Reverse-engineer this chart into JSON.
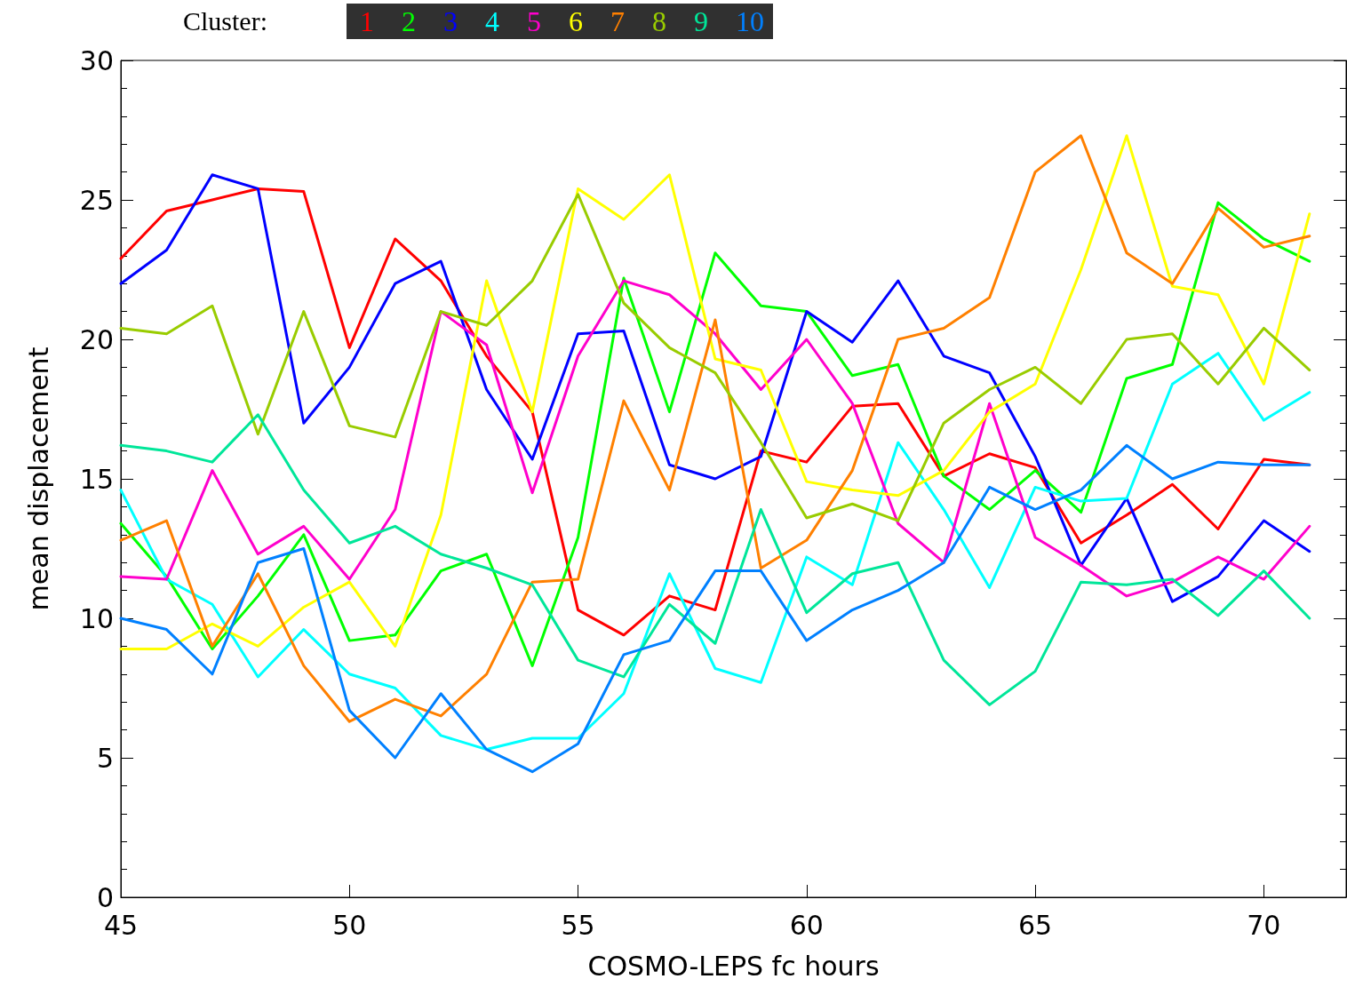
{
  "chart_data": {
    "type": "line",
    "xlabel": "COSMO-LEPS fc hours",
    "ylabel": "mean displacement",
    "legend_title": "Cluster:",
    "legend": "top left",
    "grid": false,
    "marker": "none",
    "line_style": "solid",
    "x": [
      45,
      46,
      47,
      48,
      49,
      50,
      51,
      52,
      53,
      54,
      55,
      56,
      57,
      58,
      59,
      60,
      61,
      62,
      63,
      64,
      65,
      66,
      67,
      68,
      69,
      70,
      71
    ],
    "xlim": [
      45,
      71.8
    ],
    "xticks": [
      45,
      50,
      55,
      60,
      65,
      70
    ],
    "ylim": [
      0,
      30
    ],
    "yticks": [
      0,
      5,
      10,
      15,
      20,
      25,
      30
    ],
    "series": [
      {
        "name": "1",
        "color": "#ff0000",
        "values": [
          22.9,
          24.6,
          25.0,
          25.4,
          25.3,
          19.7,
          23.6,
          22.1,
          19.4,
          17.4,
          10.3,
          9.4,
          10.8,
          10.3,
          16.0,
          15.6,
          17.6,
          17.7,
          15.1,
          15.9,
          15.4,
          12.7,
          13.7,
          14.8,
          13.2,
          15.7,
          15.5
        ]
      },
      {
        "name": "2",
        "color": "#00ff00",
        "values": [
          13.4,
          11.5,
          8.9,
          10.8,
          13.0,
          9.2,
          9.4,
          11.7,
          12.3,
          8.3,
          12.9,
          22.2,
          17.4,
          23.1,
          21.2,
          21.0,
          18.7,
          19.1,
          15.1,
          13.9,
          15.3,
          13.8,
          18.6,
          19.1,
          24.9,
          23.6,
          22.8
        ]
      },
      {
        "name": "3",
        "color": "#0000ff",
        "values": [
          22.0,
          23.2,
          25.9,
          25.4,
          17.0,
          19.0,
          22.0,
          22.8,
          18.2,
          15.7,
          20.2,
          20.3,
          15.5,
          15.0,
          15.8,
          21.0,
          19.9,
          22.1,
          19.4,
          18.8,
          15.8,
          11.9,
          14.3,
          10.6,
          11.5,
          13.5,
          12.4
        ]
      },
      {
        "name": "4",
        "color": "#00ffff",
        "values": [
          14.6,
          11.4,
          10.5,
          7.9,
          9.6,
          8.0,
          7.5,
          5.8,
          5.3,
          5.7,
          5.7,
          7.3,
          11.6,
          8.2,
          7.7,
          12.2,
          11.2,
          16.3,
          13.9,
          11.1,
          14.7,
          14.2,
          14.3,
          18.4,
          19.5,
          17.1,
          18.1
        ]
      },
      {
        "name": "5",
        "color": "#ff00cc",
        "values": [
          11.5,
          11.4,
          15.3,
          12.3,
          13.3,
          11.4,
          13.9,
          21.0,
          19.8,
          14.5,
          19.4,
          22.1,
          21.6,
          20.2,
          18.2,
          20.0,
          17.7,
          13.4,
          12.0,
          17.7,
          12.9,
          11.9,
          10.8,
          11.3,
          12.2,
          11.4,
          13.3
        ]
      },
      {
        "name": "6",
        "color": "#ffff00",
        "values": [
          8.9,
          8.9,
          9.8,
          9.0,
          10.4,
          11.3,
          9.0,
          13.7,
          22.1,
          17.4,
          25.4,
          24.3,
          25.9,
          19.3,
          18.9,
          14.9,
          14.6,
          14.4,
          15.3,
          17.4,
          18.4,
          22.5,
          27.3,
          21.9,
          21.6,
          18.4,
          24.5
        ]
      },
      {
        "name": "7",
        "color": "#ff8000",
        "values": [
          12.8,
          13.5,
          9.0,
          11.6,
          8.3,
          6.3,
          7.1,
          6.5,
          8.0,
          11.3,
          11.4,
          17.8,
          14.6,
          20.7,
          11.8,
          12.8,
          15.3,
          20.0,
          20.4,
          21.5,
          26.0,
          27.3,
          23.1,
          22.0,
          24.7,
          23.3,
          23.7
        ]
      },
      {
        "name": "8",
        "color": "#99cc00",
        "values": [
          20.4,
          20.2,
          21.2,
          16.6,
          21.0,
          16.9,
          16.5,
          21.0,
          20.5,
          22.1,
          25.2,
          21.3,
          19.7,
          18.8,
          16.3,
          13.6,
          14.1,
          13.5,
          17.0,
          18.2,
          19.0,
          17.7,
          20.0,
          20.2,
          18.4,
          20.4,
          18.9
        ]
      },
      {
        "name": "9",
        "color": "#00e699",
        "values": [
          16.2,
          16.0,
          15.6,
          17.3,
          14.6,
          12.7,
          13.3,
          12.3,
          11.8,
          11.2,
          8.5,
          7.9,
          10.5,
          9.1,
          13.9,
          10.2,
          11.6,
          12.0,
          8.5,
          6.9,
          8.1,
          11.3,
          11.2,
          11.4,
          10.1,
          11.7,
          10.0
        ]
      },
      {
        "name": "10",
        "color": "#0080ff",
        "values": [
          10.0,
          9.6,
          8.0,
          12.0,
          12.5,
          6.7,
          5.0,
          7.3,
          5.3,
          4.5,
          5.5,
          8.7,
          9.2,
          11.7,
          11.7,
          9.2,
          10.3,
          11.0,
          12.0,
          14.7,
          13.9,
          14.6,
          16.2,
          15.0,
          15.6,
          15.5,
          15.5
        ]
      }
    ]
  }
}
